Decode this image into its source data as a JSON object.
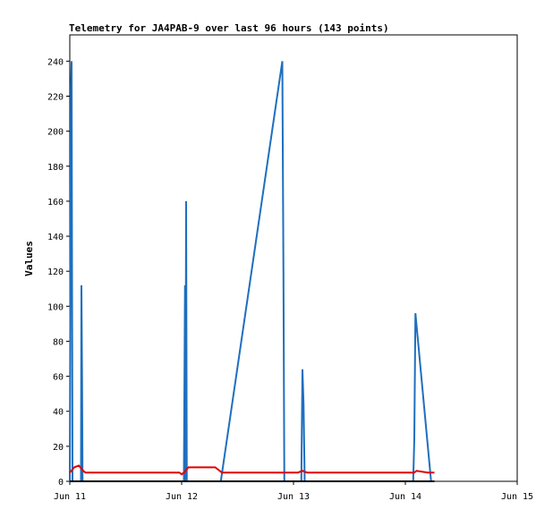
{
  "chart_data": {
    "type": "line",
    "title": "Telemetry for JA4PAB-9 over last 96 hours (143 points)",
    "y_label": "Values",
    "xlim": [
      11,
      15
    ],
    "xticks": [
      {
        "value": 11,
        "label": "Jun 11"
      },
      {
        "value": 12,
        "label": "Jun 12"
      },
      {
        "value": 13,
        "label": "Jun 13"
      },
      {
        "value": 14,
        "label": "Jun 14"
      },
      {
        "value": 15,
        "label": "Jun 15"
      }
    ],
    "ylim": [
      0,
      255
    ],
    "yticks": [
      0,
      20,
      40,
      60,
      80,
      100,
      120,
      140,
      160,
      180,
      200,
      220,
      240
    ],
    "series": [
      {
        "color": "#1e6fbf",
        "x": [
          11.0,
          11.01,
          11.016,
          11.024,
          11.1,
          11.104,
          11.11,
          11.114,
          12.02,
          12.03,
          12.034,
          12.04,
          12.046,
          12.35,
          12.9,
          12.91,
          12.918,
          13.07,
          13.08,
          13.09,
          13.1,
          14.07,
          14.08,
          14.09,
          14.23
        ],
        "values": [
          0,
          225,
          240,
          0,
          0,
          112,
          56,
          0,
          0,
          112,
          0,
          160,
          0,
          0,
          240,
          120,
          0,
          0,
          64,
          44,
          0,
          0,
          24,
          96,
          0
        ]
      },
      {
        "color": "#e00000",
        "x": [
          11.0,
          11.04,
          11.08,
          11.12,
          11.14,
          11.98,
          12.0,
          12.02,
          12.06,
          12.3,
          12.34,
          12.36,
          13.04,
          13.08,
          13.12,
          14.08,
          14.1,
          14.2,
          14.26
        ],
        "values": [
          5,
          8,
          9,
          6,
          5,
          5,
          4,
          5,
          8,
          8,
          6,
          5,
          5,
          6,
          5,
          5,
          6,
          5,
          5
        ]
      },
      {
        "color": "#000000",
        "x": [
          11.0,
          14.26
        ],
        "values": [
          0,
          0
        ]
      }
    ]
  }
}
